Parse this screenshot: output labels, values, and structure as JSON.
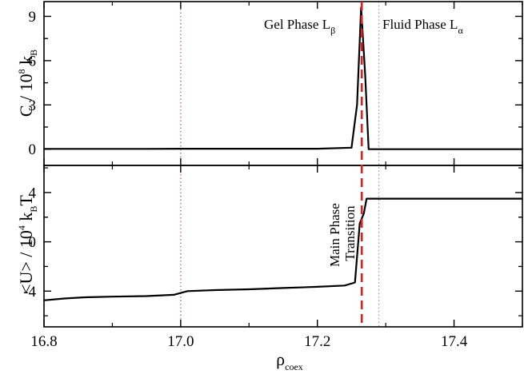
{
  "chart_data": [
    {
      "id": "top",
      "type": "line",
      "ylabel": {
        "main": "C / 10",
        "sup": "8",
        "tail": " k",
        "sub": "B"
      },
      "xlim": [
        16.8,
        17.5
      ],
      "ylim": [
        -1.1,
        10.0
      ],
      "yticks": [
        0,
        3,
        6,
        9
      ],
      "ytick_labels": [
        "0",
        "3",
        "6",
        "9"
      ],
      "series": [
        {
          "x": [
            16.8,
            16.85,
            16.9,
            16.95,
            17.0,
            17.05,
            17.1,
            17.15,
            17.2,
            17.25,
            17.258,
            17.264,
            17.27,
            17.275,
            17.3,
            17.35,
            17.4,
            17.45,
            17.5
          ],
          "y": [
            0.02,
            0.02,
            0.02,
            0.02,
            0.03,
            0.03,
            0.03,
            0.03,
            0.03,
            0.1,
            3.0,
            9.6,
            5.0,
            0.0,
            0.0,
            0.0,
            0.0,
            0.0,
            0.0
          ]
        }
      ],
      "annotations": [
        {
          "main": "Gel Phase L",
          "sub": "β",
          "x": 17.13
        },
        {
          "main": "Fluid Phase L",
          "sub": "α",
          "x": 17.31
        }
      ]
    },
    {
      "id": "bottom",
      "type": "line",
      "ylabel": {
        "main": "<U> / 10",
        "sup": "4",
        "tail": " k",
        "sub": "B",
        "after": "T"
      },
      "xlabel": {
        "main": "ρ",
        "sub": "coex"
      },
      "xlim": [
        16.8,
        17.5
      ],
      "ylim": [
        -6.9,
        6.2
      ],
      "yticks": [
        -4,
        0,
        4
      ],
      "ytick_labels": [
        "-4",
        "0",
        "4"
      ],
      "xticks": [
        16.8,
        17.0,
        17.2,
        17.4
      ],
      "xtick_labels": [
        "16.8",
        "17.0",
        "17.2",
        "17.4"
      ],
      "series": [
        {
          "x": [
            16.8,
            16.83,
            16.86,
            16.9,
            16.95,
            16.99,
            17.0,
            17.01,
            17.05,
            17.1,
            17.15,
            17.2,
            17.24,
            17.255,
            17.262,
            17.268,
            17.272,
            17.3,
            17.4,
            17.5
          ],
          "y": [
            -4.75,
            -4.6,
            -4.5,
            -4.45,
            -4.4,
            -4.3,
            -4.15,
            -4.0,
            -3.92,
            -3.85,
            -3.75,
            -3.65,
            -3.55,
            -3.3,
            1.5,
            2.3,
            3.5,
            3.5,
            3.5,
            3.5
          ]
        }
      ],
      "annotations": [
        {
          "line1": "Main Phase",
          "line2": "Transition"
        }
      ]
    }
  ],
  "reference_lines": {
    "main_transition": {
      "x": 17.265,
      "color": "#e02020",
      "style": "dashed"
    },
    "dotted_left": {
      "x": 17.0,
      "color": "#b06090",
      "style": "dotted"
    },
    "dotted_right": {
      "x": 17.29,
      "color": "#b09aa0",
      "style": "dotted"
    }
  },
  "colors": {
    "line": "#000000",
    "frame": "#000000"
  }
}
